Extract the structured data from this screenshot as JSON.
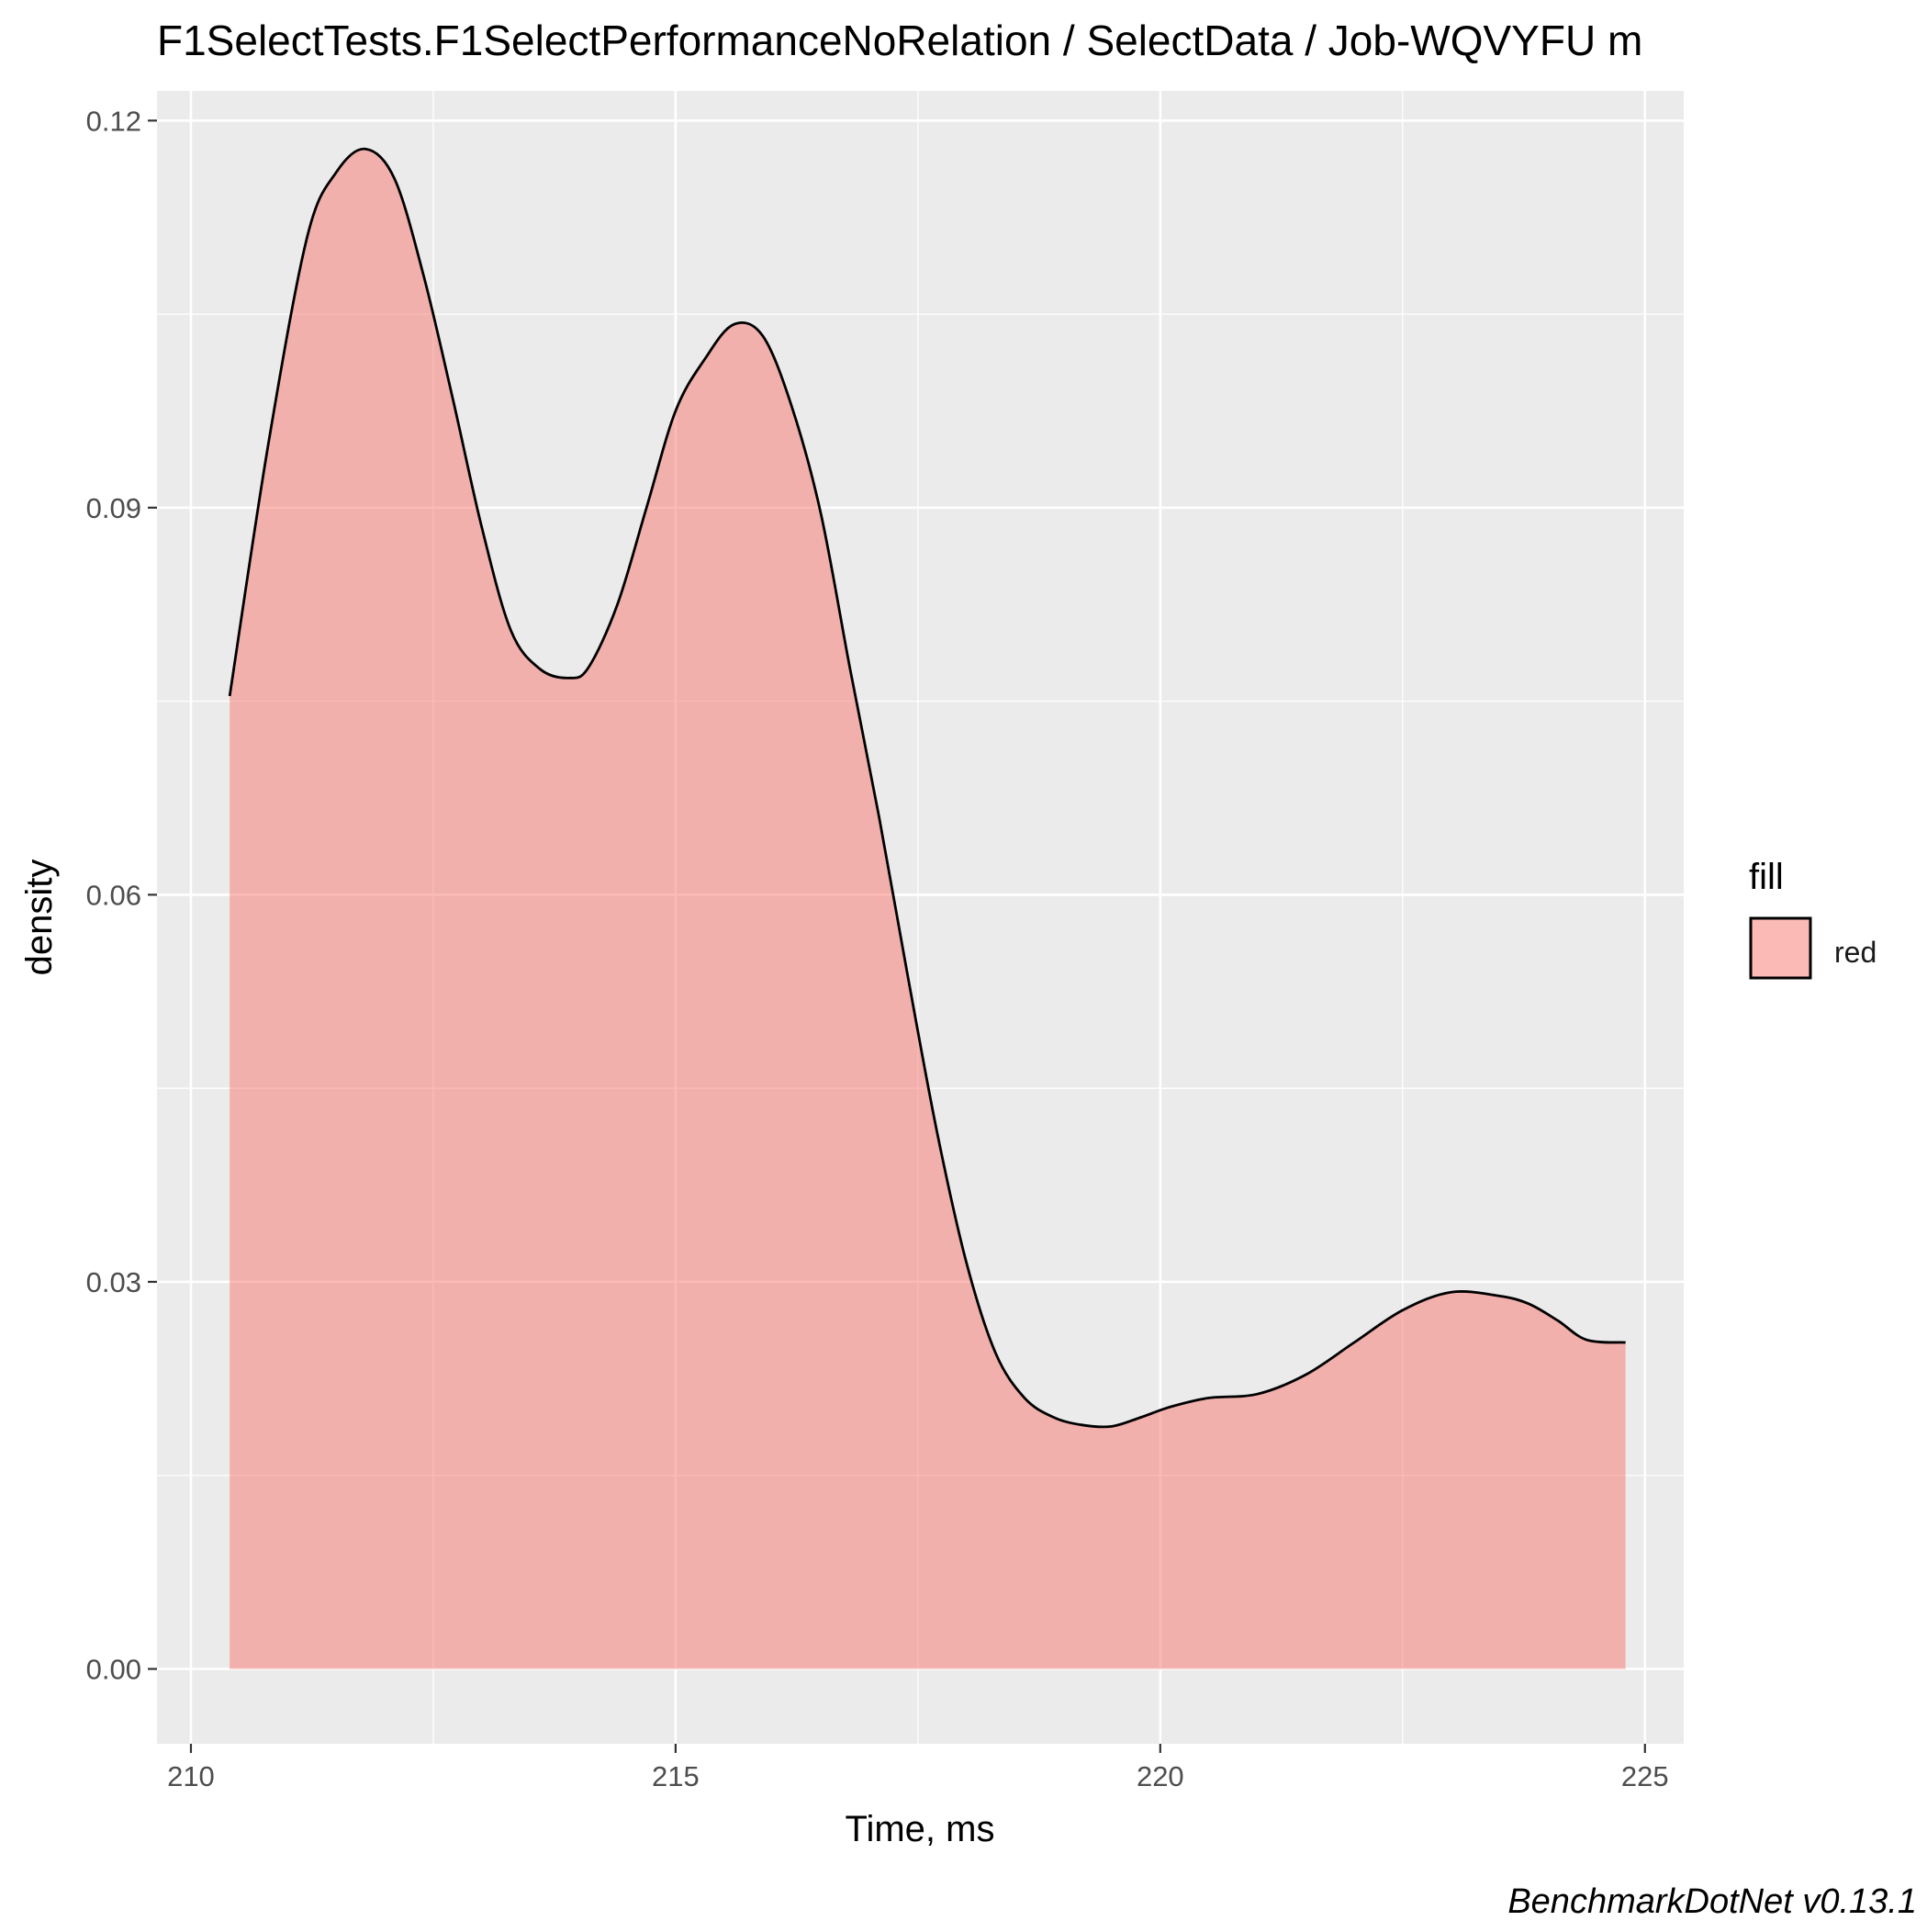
{
  "chart_data": {
    "type": "area",
    "title": "F1SelectTests.F1SelectPerformanceNoRelation / SelectData / Job-WQVYFU m",
    "xlabel": "Time, ms",
    "ylabel": "density",
    "caption": "BenchmarkDotNet v0.13.1",
    "xlim": [
      209.65,
      225.4
    ],
    "ylim": [
      -0.0058,
      0.1223
    ],
    "x_ticks": [
      210,
      215,
      220,
      225
    ],
    "x_tick_labels": [
      "210",
      "215",
      "220",
      "225"
    ],
    "y_ticks": [
      0.0,
      0.03,
      0.06,
      0.09,
      0.12
    ],
    "y_tick_labels": [
      "0.00",
      "0.03",
      "0.06",
      "0.09",
      "0.12"
    ],
    "grid": true,
    "legend": {
      "title": "fill",
      "position": "right",
      "entries": [
        "red"
      ]
    },
    "colors": {
      "fill": "#F8766D",
      "fill_opacity": 0.5,
      "outline": "#000000",
      "panel_background": "#EBEBEB",
      "grid": "#FFFFFF"
    },
    "series": [
      {
        "name": "red",
        "x": [
          210.4,
          210.8,
          211.2,
          211.5,
          211.8,
          212.1,
          212.4,
          212.7,
          213.0,
          213.3,
          213.6,
          213.9,
          214.1,
          214.4,
          214.7,
          215.0,
          215.3,
          215.6,
          215.9,
          216.2,
          216.5,
          216.8,
          217.1,
          217.4,
          217.7,
          218.0,
          218.3,
          218.6,
          218.9,
          219.2,
          219.5,
          219.8,
          220.1,
          220.5,
          221.0,
          221.5,
          222.0,
          222.5,
          223.0,
          223.5,
          223.8,
          224.1,
          224.4,
          224.8
        ],
        "y": [
          0.0754,
          0.095,
          0.111,
          0.116,
          0.1178,
          0.1155,
          0.108,
          0.0985,
          0.0885,
          0.0805,
          0.0775,
          0.0768,
          0.0776,
          0.0825,
          0.09,
          0.0975,
          0.1015,
          0.1042,
          0.1033,
          0.0978,
          0.0895,
          0.0775,
          0.066,
          0.0535,
          0.0415,
          0.0315,
          0.0245,
          0.021,
          0.0195,
          0.0189,
          0.0188,
          0.0195,
          0.0203,
          0.021,
          0.0213,
          0.0228,
          0.0253,
          0.0278,
          0.0292,
          0.0289,
          0.0283,
          0.027,
          0.0255,
          0.0253
        ]
      }
    ]
  }
}
